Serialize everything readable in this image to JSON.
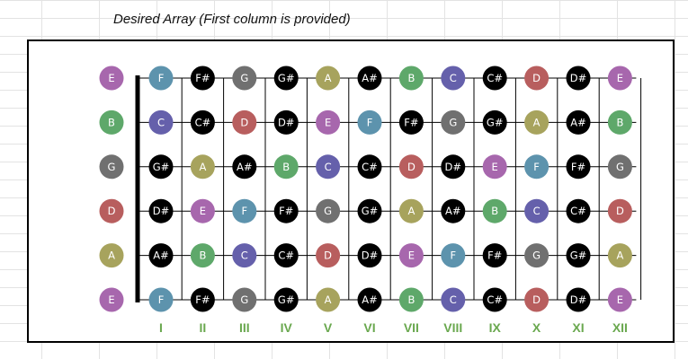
{
  "caption": "Desired Array (First column is provided)",
  "open_strings": [
    "E",
    "B",
    "G",
    "D",
    "A",
    "E"
  ],
  "grid": [
    [
      "F",
      "F#",
      "G",
      "G#",
      "A",
      "A#",
      "B",
      "C",
      "C#",
      "D",
      "D#",
      "E"
    ],
    [
      "C",
      "C#",
      "D",
      "D#",
      "E",
      "F",
      "F#",
      "G",
      "G#",
      "A",
      "A#",
      "B"
    ],
    [
      "G#",
      "A",
      "A#",
      "B",
      "C",
      "C#",
      "D",
      "D#",
      "E",
      "F",
      "F#",
      "G"
    ],
    [
      "D#",
      "E",
      "F",
      "F#",
      "G",
      "G#",
      "A",
      "A#",
      "B",
      "C",
      "C#",
      "D"
    ],
    [
      "A#",
      "B",
      "C",
      "C#",
      "D",
      "D#",
      "E",
      "F",
      "F#",
      "G",
      "G#",
      "A"
    ],
    [
      "F",
      "F#",
      "G",
      "G#",
      "A",
      "A#",
      "B",
      "C",
      "C#",
      "D",
      "D#",
      "E"
    ]
  ],
  "fret_labels": [
    "I",
    "II",
    "III",
    "IV",
    "V",
    "VI",
    "VII",
    "VIII",
    "IX",
    "X",
    "XI",
    "XII"
  ],
  "colors": {
    "E": "#a767ad",
    "F": "#5d93ad",
    "G": "#707070",
    "A": "#a7a35d",
    "B": "#5ea86a",
    "C": "#6560ab",
    "D": "#b85e5e",
    "sharp": "#000000",
    "fret_label": "#6aa84f"
  }
}
